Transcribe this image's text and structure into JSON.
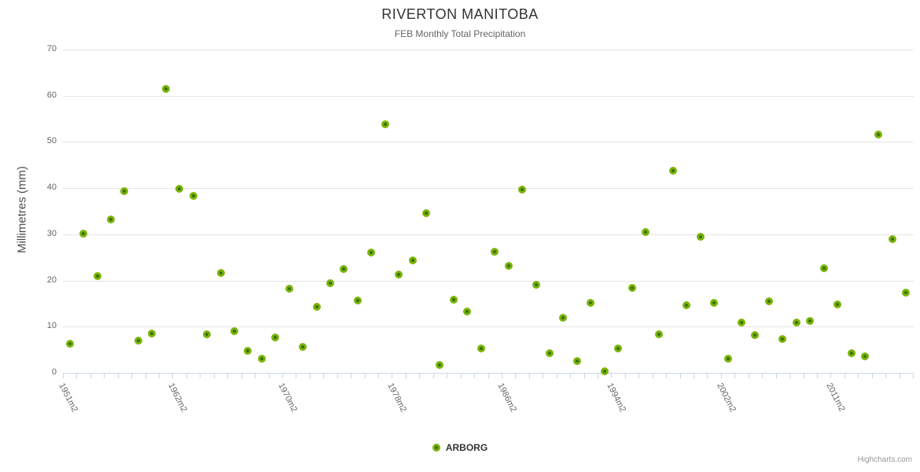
{
  "chart_data": {
    "type": "scatter",
    "title": "RIVERTON MANITOBA",
    "subtitle": "FEB Monthly Total Precipitation",
    "ylabel": "Millimetres (mm)",
    "ylim": [
      0,
      70
    ],
    "yticks": [
      0,
      10,
      20,
      30,
      40,
      50,
      60,
      70
    ],
    "grid": "horizontal-only",
    "legend_position": "bottom-center",
    "credits": "Highcharts.com",
    "x_axis": {
      "categories_count": 62,
      "tick_labels": [
        {
          "index": 0,
          "label": "1951m2"
        },
        {
          "index": 8,
          "label": "1962m2"
        },
        {
          "index": 16,
          "label": "1970m2"
        },
        {
          "index": 24,
          "label": "1978m2"
        },
        {
          "index": 32,
          "label": "1986m2"
        },
        {
          "index": 40,
          "label": "1994m2"
        },
        {
          "index": 48,
          "label": "2002m2"
        },
        {
          "index": 56,
          "label": "2011m2"
        }
      ]
    },
    "series": [
      {
        "name": "ARBORG",
        "color": "#7bb40a",
        "marker_center_color": "#3a7004",
        "values": [
          6.3,
          30.2,
          21.0,
          33.2,
          39.3,
          7.0,
          8.5,
          61.5,
          39.8,
          38.3,
          8.3,
          21.7,
          9.1,
          4.8,
          3.1,
          7.7,
          18.3,
          5.7,
          14.3,
          19.4,
          22.4,
          15.7,
          26.1,
          53.9,
          21.3,
          24.4,
          34.6,
          1.7,
          15.8,
          13.2,
          5.2,
          26.3,
          23.1,
          39.7,
          19.0,
          4.2,
          12.0,
          2.6,
          15.2,
          0.3,
          5.3,
          18.4,
          30.5,
          8.4,
          43.7,
          14.6,
          29.5,
          15.2,
          3.0,
          10.9,
          8.2,
          15.5,
          7.4,
          10.9,
          11.2,
          22.6,
          14.9,
          4.2,
          3.5,
          51.6,
          28.9,
          17.3
        ]
      }
    ]
  },
  "colors": {
    "background": "#ffffff",
    "grid_line": "#e6e6e6",
    "axis_line": "#ccd6eb",
    "tick": "#ccd6eb",
    "title_text": "#333333",
    "subtitle_text": "#666666",
    "axis_label_text": "#666666",
    "y_title_text": "#4d4d4d",
    "legend_text": "#333333",
    "credits_text": "#999999"
  }
}
